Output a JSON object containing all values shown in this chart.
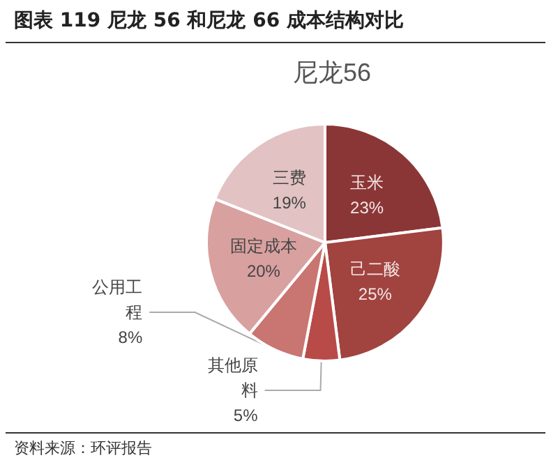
{
  "chart_data": {
    "type": "pie",
    "title": "图表 119  尼龙 56 和尼龙 66 成本结构对比",
    "subtitle": "尼龙56",
    "categories": [
      "玉米",
      "己二酸",
      "其他原料",
      "公用工程",
      "固定成本",
      "三费"
    ],
    "values": [
      23,
      25,
      5,
      8,
      20,
      19
    ],
    "colors": [
      "#8b3636",
      "#a1433f",
      "#b84b48",
      "#c97571",
      "#d9a0a0",
      "#e2c2c2"
    ],
    "value_labels": [
      "23%",
      "25%",
      "5%",
      "8%",
      "20%",
      "19%"
    ],
    "annotations": [
      "资料来源：环评报告"
    ]
  }
}
